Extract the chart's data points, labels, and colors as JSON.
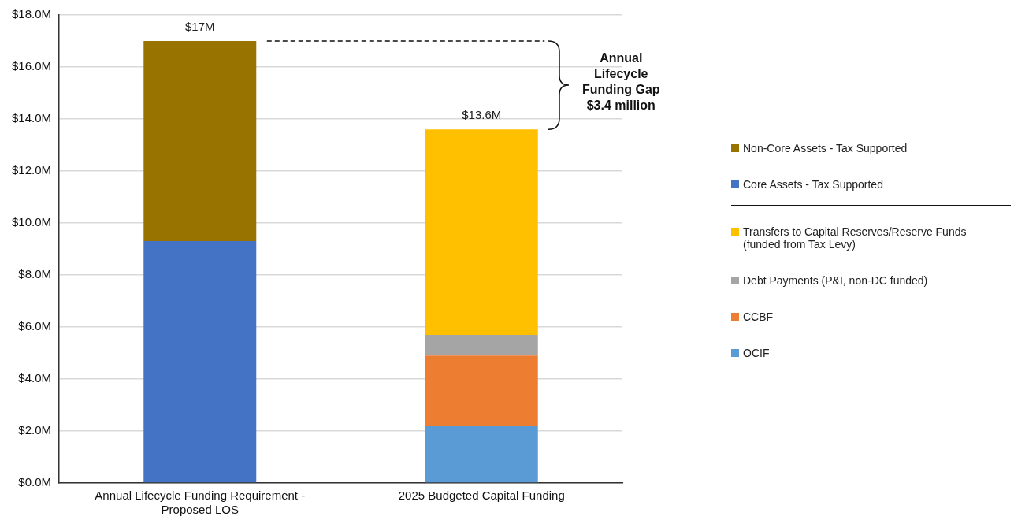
{
  "chart_data": {
    "type": "bar",
    "stacked": true,
    "categories": [
      "Annual Lifecycle Funding Requirement - Proposed LOS",
      "2025 Budgeted Capital Funding"
    ],
    "series": [
      {
        "name": "Core Assets - Tax Supported",
        "color": "#4472c4",
        "values": [
          9.3,
          null
        ]
      },
      {
        "name": "Non-Core Assets - Tax Supported",
        "color": "#997300",
        "values": [
          7.7,
          null
        ]
      },
      {
        "name": "OCIF",
        "color": "#5b9bd5",
        "values": [
          null,
          2.2
        ]
      },
      {
        "name": "CCBF",
        "color": "#ed7d31",
        "values": [
          null,
          2.7
        ]
      },
      {
        "name": "Debt Payments (P&I, non-DC funded)",
        "color": "#a5a5a5",
        "values": [
          null,
          0.8
        ]
      },
      {
        "name": "Transfers to Capital Reserves/Reserve Funds (funded from Tax Levy)",
        "color": "#ffc000",
        "values": [
          null,
          7.9
        ]
      }
    ],
    "totals": [
      "$17M",
      "$13.6M"
    ],
    "ylim": [
      0,
      18
    ],
    "yticks": [
      {
        "value": 0,
        "label": "$0.0M"
      },
      {
        "value": 2,
        "label": "$2.0M"
      },
      {
        "value": 4,
        "label": "$4.0M"
      },
      {
        "value": 6,
        "label": "$6.0M"
      },
      {
        "value": 8,
        "label": "$8.0M"
      },
      {
        "value": 10,
        "label": "$10.0M"
      },
      {
        "value": 12,
        "label": "$12.0M"
      },
      {
        "value": 14,
        "label": "$14.0M"
      },
      {
        "value": 16,
        "label": "$16.0M"
      },
      {
        "value": 18,
        "label": "$18.0M"
      }
    ],
    "grid": "y",
    "legend": "right",
    "ref_lines": [
      {
        "axis": "y",
        "value": 17,
        "color": "#111111",
        "line_style": "dashed"
      }
    ],
    "annotations": [
      "Annual Lifecycle Funding Gap $3.4 million"
    ]
  }
}
